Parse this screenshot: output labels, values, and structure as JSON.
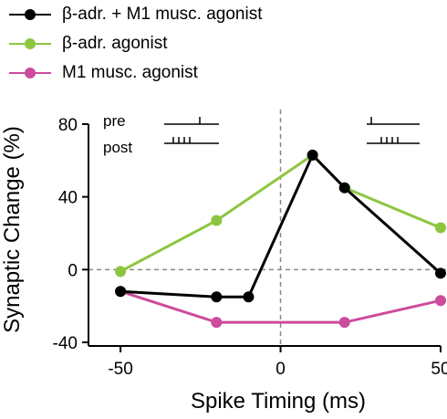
{
  "chart_data": {
    "type": "line",
    "xlabel": "Spike Timing (ms)",
    "ylabel": "Synaptic Change (%)",
    "xlim": [
      -60,
      52
    ],
    "ylim": [
      -42,
      84
    ],
    "xticks": [
      -50,
      0,
      50
    ],
    "yticks": [
      -40,
      0,
      40,
      80
    ],
    "grid": false,
    "reference_lines": {
      "x": 0,
      "y": 0,
      "style": "dashed"
    },
    "legend_position": "top-left",
    "series": [
      {
        "name": "β-adr. + M1 musc. agonist",
        "color": "#000000",
        "x": [
          -50,
          -20,
          -10,
          10,
          20,
          50
        ],
        "y": [
          -12,
          -15,
          -15,
          63,
          45,
          -2
        ]
      },
      {
        "name": "β-adr. agonist",
        "color": "#8cc63f",
        "x": [
          -50,
          -20,
          10,
          20,
          50
        ],
        "y": [
          -1,
          27,
          63,
          45,
          23
        ]
      },
      {
        "name": "M1 musc. agonist",
        "color": "#cc4b9c",
        "x": [
          -50,
          -20,
          20,
          50
        ],
        "y": [
          -12,
          -29,
          -29,
          -17
        ]
      }
    ],
    "insets": {
      "pre_label": "pre",
      "post_label": "post"
    }
  }
}
